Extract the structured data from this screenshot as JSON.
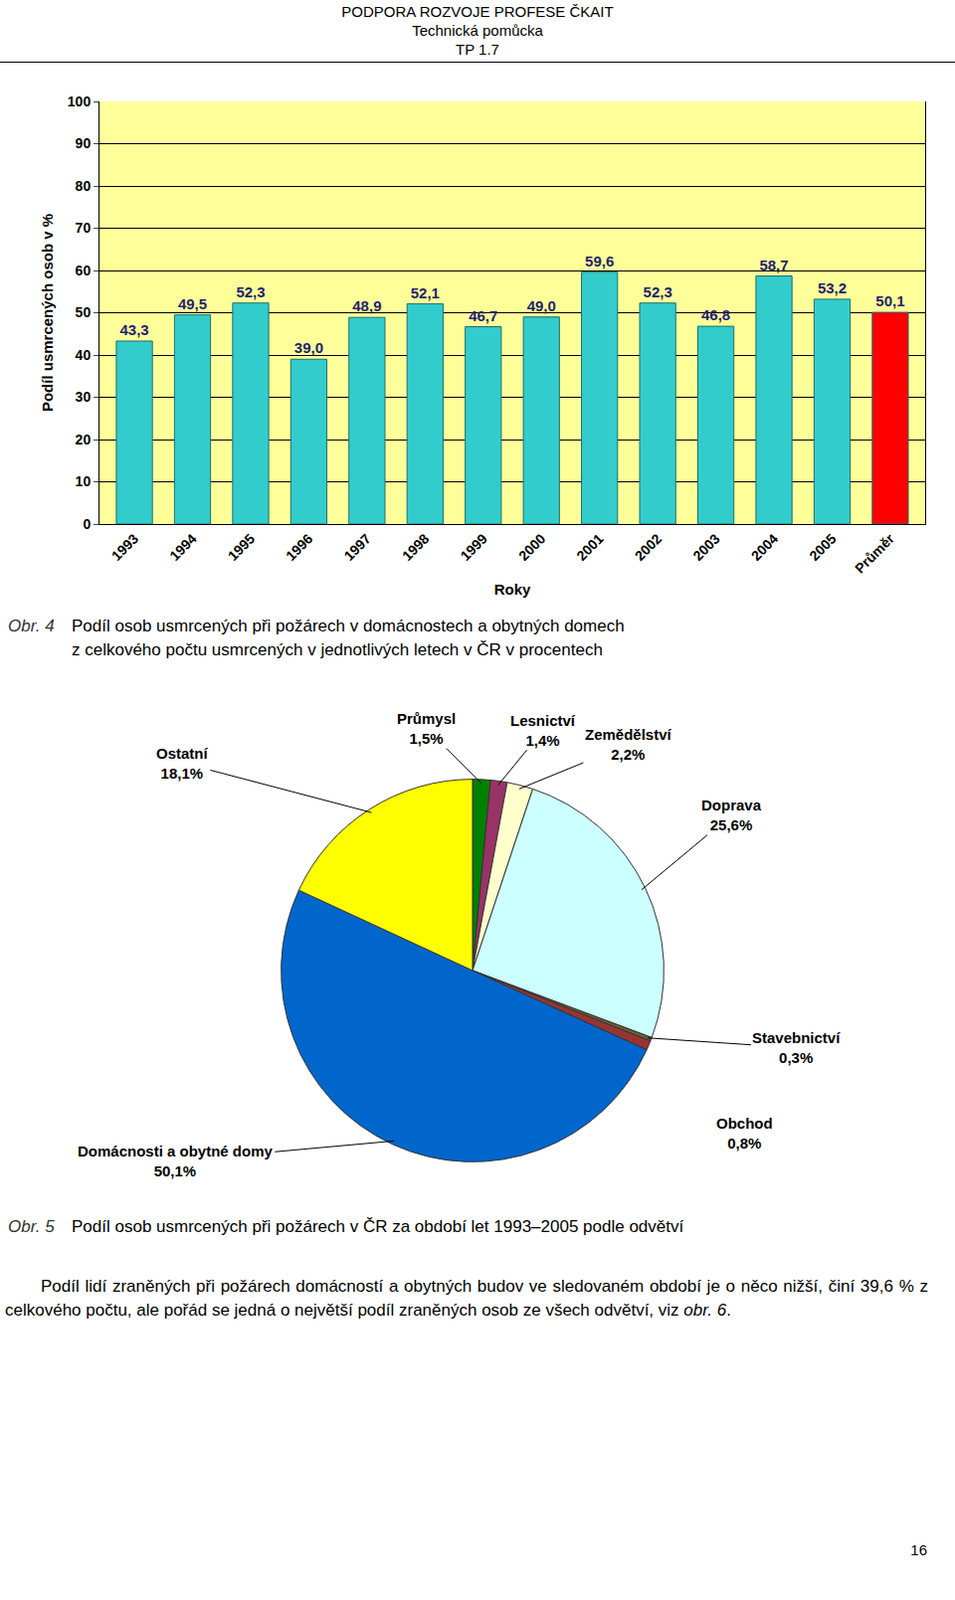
{
  "document": {
    "header": [
      "PODPORA ROZVOJE PROFESE ČKAIT",
      "Technická pomůcka",
      "TP 1.7"
    ],
    "captions": [
      {
        "label": "Obr. 4",
        "lines": [
          "Podíl osob usmrcených při požárech v domácnostech a obytných domech",
          "z celkového počtu usmrcených v jednotlivých letech v ČR v procentech"
        ]
      },
      {
        "label": "Obr. 5",
        "lines": [
          "Podíl osob usmrcených při požárech v ČR za období let 1993–2005 podle odvětví"
        ]
      }
    ],
    "paragraph": {
      "text": "Podíl lidí zraněných při požárech domácností a obytných budov ve sledovaném období je o něco nižší, činí 39,6 % z celkového počtu, ale pořád se jedná o největší podíl zraněných osob ze všech odvětví, viz ",
      "ref": "obr. 6",
      "end": "."
    },
    "page_number": "16"
  },
  "chart_data": [
    {
      "type": "bar",
      "x_label": "Roky",
      "y_label": "Podíl usmrcených osob v %",
      "categories": [
        "1993",
        "1994",
        "1995",
        "1996",
        "1997",
        "1998",
        "1999",
        "2000",
        "2001",
        "2002",
        "2003",
        "2004",
        "2005",
        "Průměr"
      ],
      "values": [
        43.3,
        49.5,
        52.3,
        39.0,
        48.9,
        52.1,
        46.7,
        49.0,
        59.6,
        52.3,
        46.8,
        58.7,
        53.2,
        50.1
      ],
      "value_labels": [
        "43,3",
        "49,5",
        "52,3",
        "39,0",
        "48,9",
        "52,1",
        "46,7",
        "49,0",
        "59,6",
        "52,3",
        "46,8",
        "58,7",
        "53,2",
        "50,1"
      ],
      "colors": [
        "#33CCCC",
        "#33CCCC",
        "#33CCCC",
        "#33CCCC",
        "#33CCCC",
        "#33CCCC",
        "#33CCCC",
        "#33CCCC",
        "#33CCCC",
        "#33CCCC",
        "#33CCCC",
        "#33CCCC",
        "#33CCCC",
        "#FF0000"
      ],
      "ylim": [
        0,
        100
      ],
      "yticks": [
        0,
        10,
        20,
        30,
        40,
        50,
        60,
        70,
        80,
        90,
        100
      ],
      "grid": true,
      "data_labels": true
    },
    {
      "type": "pie",
      "categories": [
        "Průmysl",
        "Lesnictví",
        "Zemědělství",
        "Doprava",
        "Stavebnictví",
        "Obchod",
        "Domácnosti a obytné domy",
        "Ostatní"
      ],
      "values": [
        1.5,
        1.4,
        2.2,
        25.6,
        0.3,
        0.8,
        50.1,
        18.1
      ],
      "value_labels": [
        "1,5%",
        "1,4%",
        "2,2%",
        "25,6%",
        "0,3%",
        "0,8%",
        "50,1%",
        "18,1%"
      ],
      "colors": [
        "#008000",
        "#993366",
        "#FFFFCC",
        "#CCFFFF",
        "#666633",
        "#993333",
        "#0066CC",
        "#FFFF00"
      ],
      "data_labels": true
    }
  ]
}
